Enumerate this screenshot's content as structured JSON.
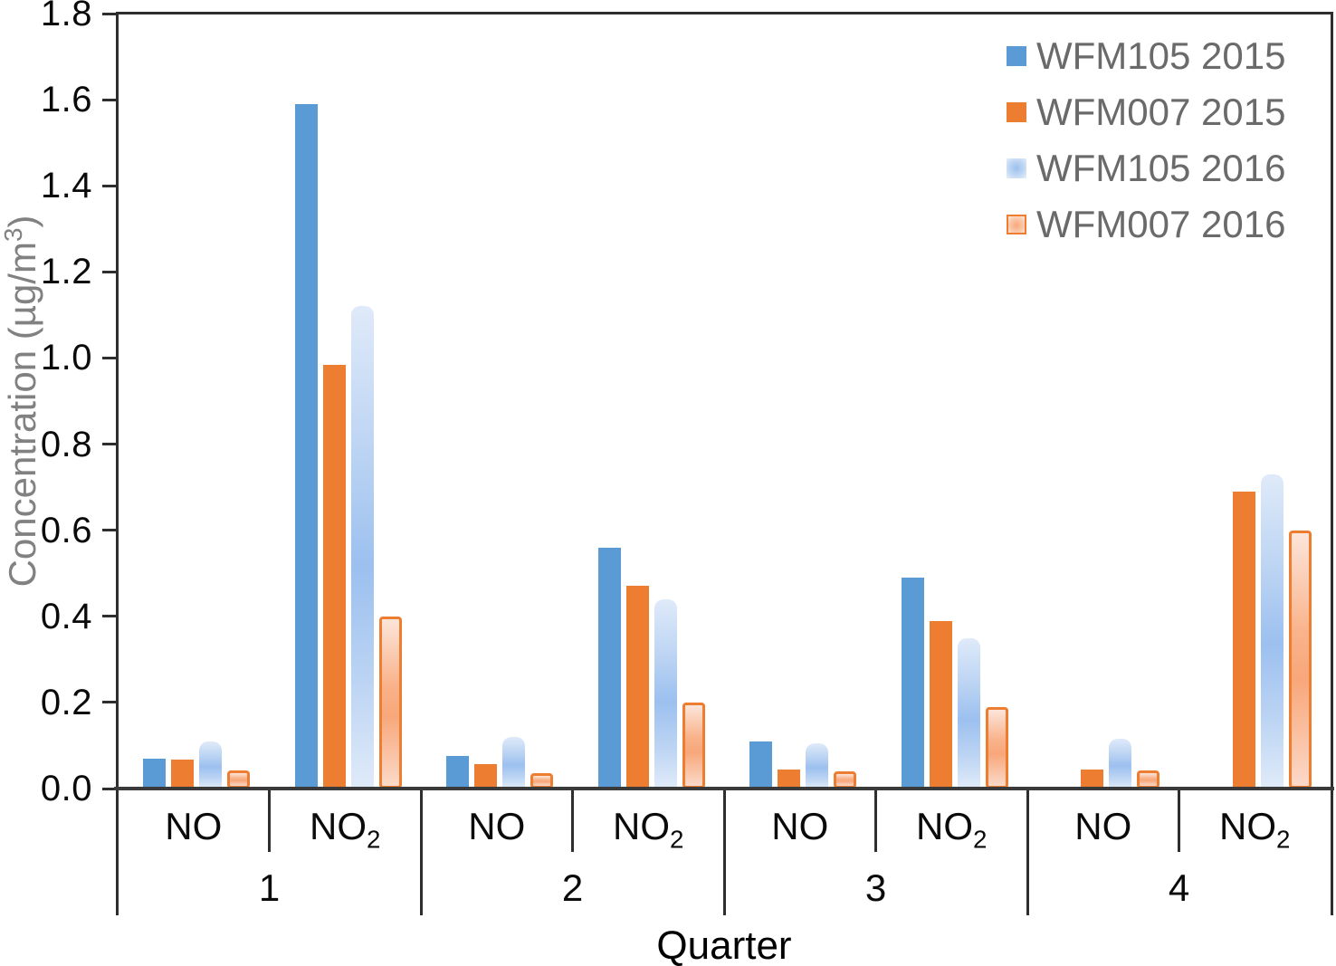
{
  "chart_data": {
    "type": "bar",
    "title": "",
    "xlabel": "Quarter",
    "ylabel": "Concentration (µg/m³)",
    "ylim": [
      0,
      1.8
    ],
    "ytick_step": 0.2,
    "ytick_labels": [
      "0.0",
      "0.2",
      "0.4",
      "0.6",
      "0.8",
      "1.0",
      "1.2",
      "1.4",
      "1.6",
      "1.8"
    ],
    "grid": false,
    "legend_position": "top-right-inside",
    "group_labels": [
      "1",
      "2",
      "3",
      "4"
    ],
    "subgroup_labels": [
      "NO",
      "NO₂"
    ],
    "categories": [
      "Q1 NO",
      "Q1 NO₂",
      "Q2 NO",
      "Q2 NO₂",
      "Q3 NO",
      "Q3 NO₂",
      "Q4 NO",
      "Q4 NO₂"
    ],
    "series": [
      {
        "name": "WFM105 2015",
        "fill": "solid",
        "color": "#5B9BD5",
        "values": [
          0.07,
          1.59,
          0.075,
          0.56,
          0.11,
          0.49,
          null,
          null
        ]
      },
      {
        "name": "WFM007 2015",
        "fill": "solid",
        "color": "#ED7D31",
        "values": [
          0.068,
          0.985,
          0.056,
          0.47,
          0.045,
          0.39,
          0.045,
          0.69
        ]
      },
      {
        "name": "WFM105 2016",
        "fill": "gradient",
        "color": "#9CC0EF",
        "color_light": "#DFEAF9",
        "values": [
          0.11,
          1.12,
          0.12,
          0.44,
          0.105,
          0.35,
          0.115,
          0.73
        ]
      },
      {
        "name": "WFM007 2016",
        "fill": "gradient-border",
        "color": "#F8A87C",
        "color_light": "#FCE5DA",
        "border_color": "#ED7D31",
        "values": [
          0.043,
          0.4,
          0.036,
          0.2,
          0.04,
          0.19,
          0.042,
          0.6
        ]
      }
    ]
  },
  "colors": {
    "axis": "#2e2e2e",
    "tick_label": "#0a0a0a",
    "y_axis_title": "#818181",
    "x_axis_title": "#000000",
    "legend_text": "#6a6a6a",
    "background": "#ffffff"
  }
}
